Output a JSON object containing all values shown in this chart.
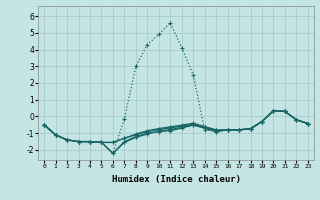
{
  "xlabel": "Humidex (Indice chaleur)",
  "background_color": "#c5e5e5",
  "grid_color": "#a8cccc",
  "line_color": "#1a6666",
  "xlim": [
    -0.5,
    23.5
  ],
  "ylim": [
    -2.6,
    6.6
  ],
  "xticks": [
    0,
    1,
    2,
    3,
    4,
    5,
    6,
    7,
    8,
    9,
    10,
    11,
    12,
    13,
    14,
    15,
    16,
    17,
    18,
    19,
    20,
    21,
    22,
    23
  ],
  "yticks": [
    -2,
    -1,
    0,
    1,
    2,
    3,
    4,
    5,
    6
  ],
  "lines": [
    {
      "x": [
        0,
        1,
        2,
        3,
        4,
        5,
        6,
        7,
        8,
        9,
        10,
        11,
        12,
        13,
        14,
        15,
        16,
        17,
        18,
        19,
        20,
        21,
        22,
        23
      ],
      "y": [
        -0.5,
        -1.1,
        -1.4,
        -1.5,
        -1.5,
        -1.55,
        -2.2,
        -0.15,
        3.0,
        4.3,
        4.9,
        5.6,
        4.1,
        2.5,
        -0.8,
        -0.9,
        -0.8,
        -0.8,
        -0.75,
        -0.3,
        0.35,
        0.3,
        -0.2,
        -0.42
      ],
      "style": "dotted"
    },
    {
      "x": [
        0,
        1,
        2,
        3,
        4,
        5,
        6,
        7,
        8,
        9,
        10,
        11,
        12,
        13,
        14,
        15,
        16,
        17,
        18,
        19,
        20,
        21,
        22,
        23
      ],
      "y": [
        -0.5,
        -1.1,
        -1.4,
        -1.5,
        -1.5,
        -1.55,
        -2.2,
        -1.5,
        -1.2,
        -1.0,
        -0.9,
        -0.85,
        -0.7,
        -0.5,
        -0.7,
        -0.9,
        -0.8,
        -0.8,
        -0.75,
        -0.3,
        0.35,
        0.3,
        -0.2,
        -0.42
      ],
      "style": "solid"
    },
    {
      "x": [
        0,
        1,
        2,
        3,
        4,
        5,
        6,
        7,
        8,
        9,
        10,
        11,
        12,
        13,
        14,
        15,
        16,
        17,
        18,
        19,
        20,
        21,
        22,
        23
      ],
      "y": [
        -0.5,
        -1.1,
        -1.4,
        -1.5,
        -1.5,
        -1.55,
        -1.55,
        -1.3,
        -1.05,
        -0.85,
        -0.72,
        -0.62,
        -0.52,
        -0.4,
        -0.6,
        -0.8,
        -0.8,
        -0.8,
        -0.72,
        -0.3,
        0.35,
        0.3,
        -0.2,
        -0.42
      ],
      "style": "solid"
    },
    {
      "x": [
        0,
        1,
        2,
        3,
        4,
        5,
        6,
        7,
        8,
        9,
        10,
        11,
        12,
        13,
        14,
        15,
        16,
        17,
        18,
        19,
        20,
        21,
        22,
        23
      ],
      "y": [
        -0.5,
        -1.1,
        -1.4,
        -1.5,
        -1.5,
        -1.55,
        -1.55,
        -1.3,
        -1.1,
        -0.9,
        -0.78,
        -0.68,
        -0.58,
        -0.46,
        -0.65,
        -0.82,
        -0.8,
        -0.8,
        -0.72,
        -0.3,
        0.35,
        0.3,
        -0.2,
        -0.42
      ],
      "style": "solid"
    },
    {
      "x": [
        0,
        1,
        2,
        3,
        4,
        5,
        6,
        7,
        8,
        9,
        10,
        11,
        12,
        13,
        14,
        15,
        16,
        17,
        18,
        19,
        20,
        21,
        22,
        23
      ],
      "y": [
        -0.5,
        -1.1,
        -1.4,
        -1.5,
        -1.5,
        -1.55,
        -2.2,
        -1.55,
        -1.25,
        -1.05,
        -0.88,
        -0.78,
        -0.65,
        -0.52,
        -0.68,
        -0.88,
        -0.8,
        -0.8,
        -0.72,
        -0.3,
        0.35,
        0.3,
        -0.2,
        -0.42
      ],
      "style": "solid"
    }
  ]
}
